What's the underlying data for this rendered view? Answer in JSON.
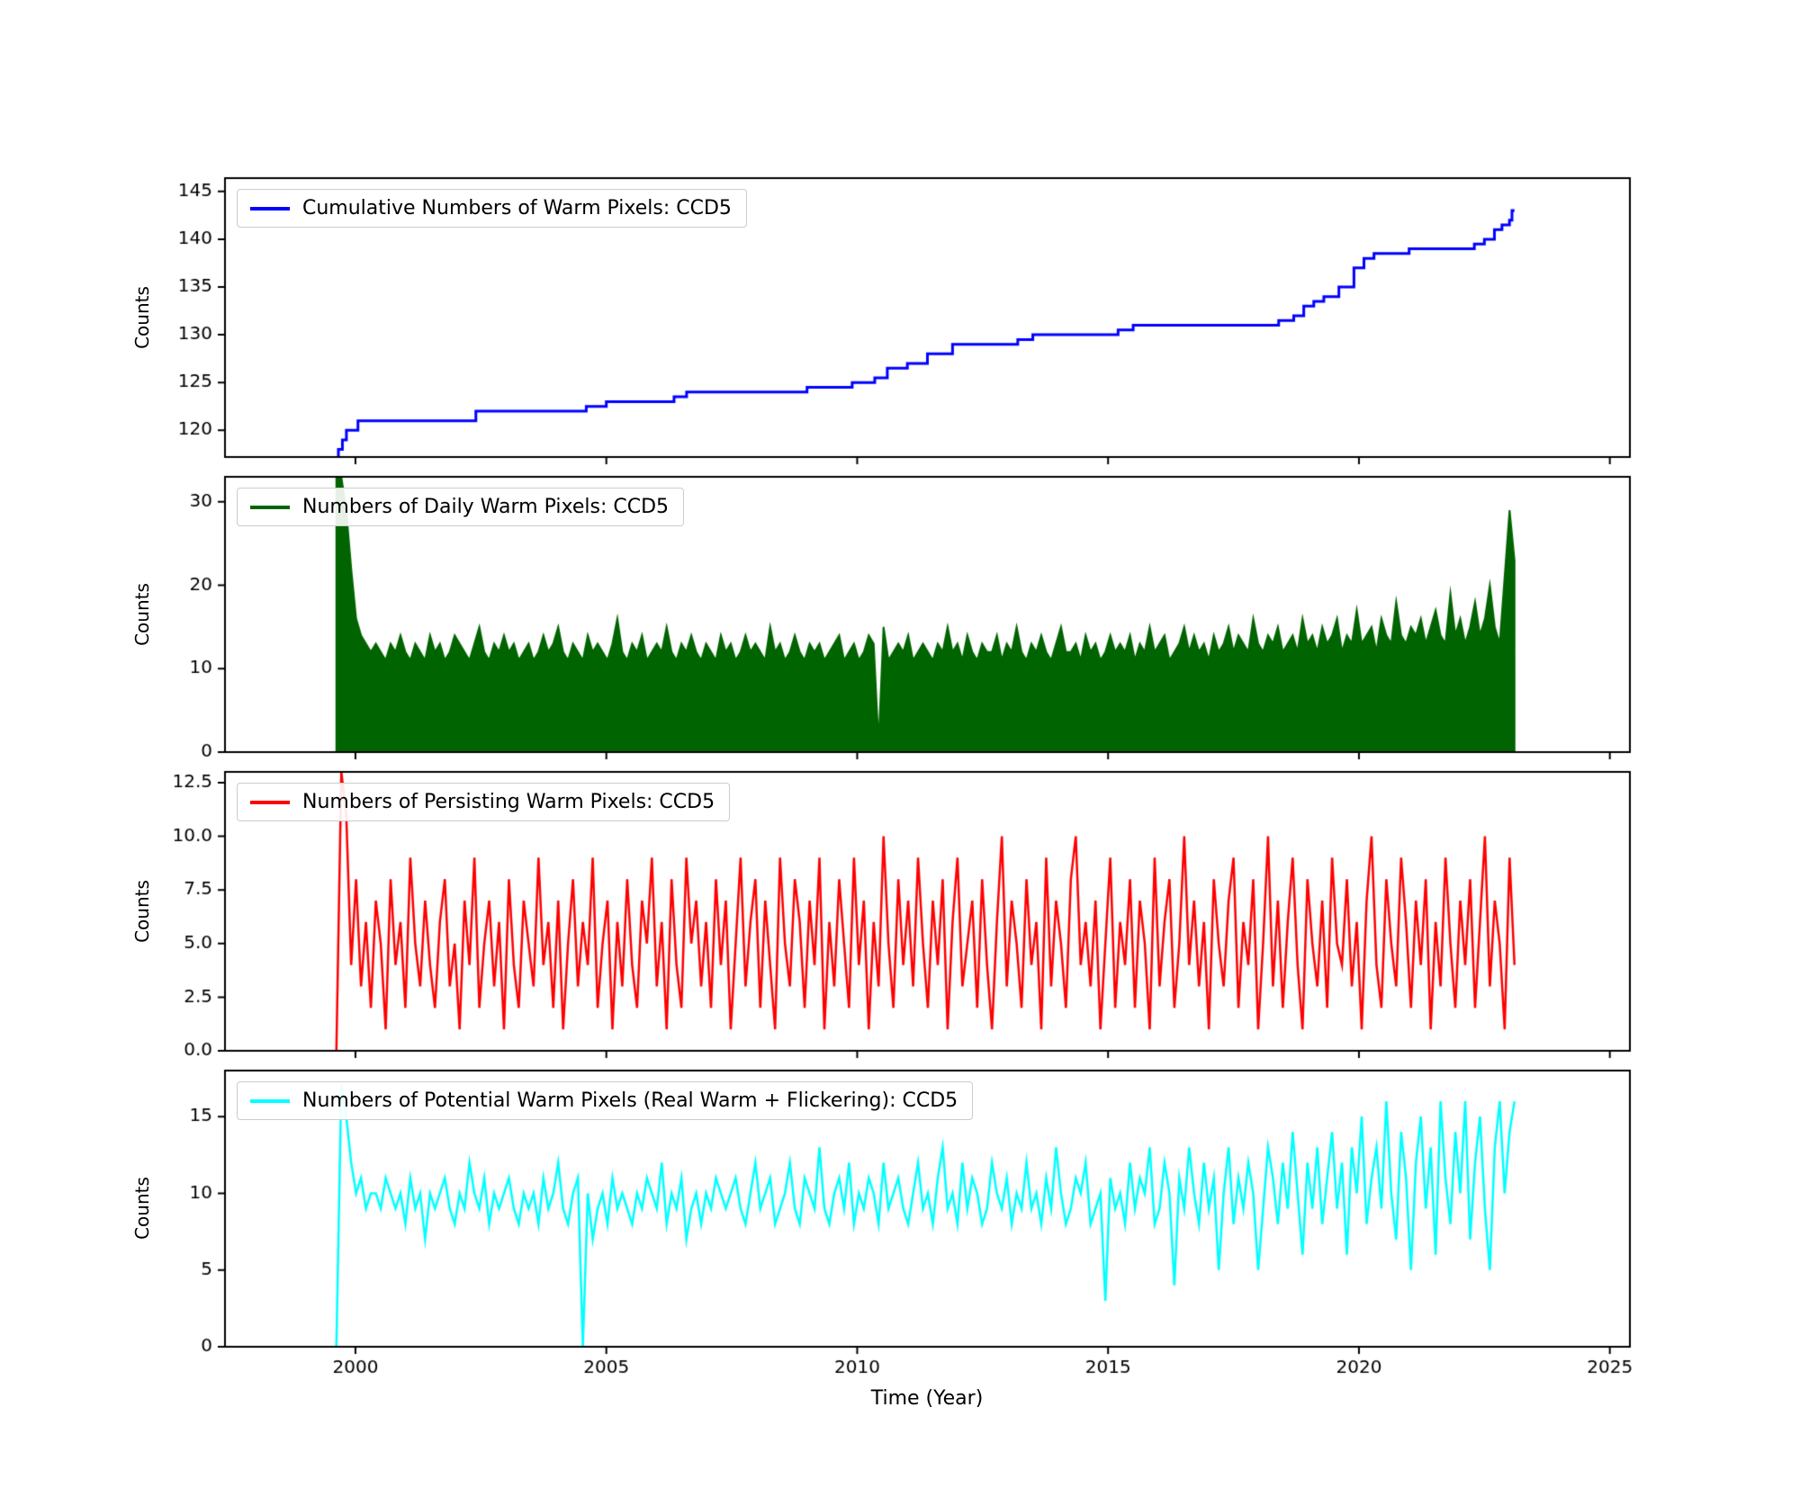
{
  "figure": {
    "background": "#ffffff",
    "xlabel": "Time (Year)",
    "ylabel": "Counts",
    "xlim": [
      1997.4,
      2025.4
    ],
    "x_ticks": [
      2000,
      2005,
      2010,
      2015,
      2020,
      2025
    ],
    "x_tick_labels": [
      "2000",
      "2005",
      "2010",
      "2015",
      "2020",
      "2025"
    ]
  },
  "chart_data": [
    {
      "type": "step",
      "legend": "Cumulative Numbers of Warm Pixels: CCD5",
      "color": "#0000ff",
      "ylabel": "Counts",
      "ylim": [
        117.2,
        146.4
      ],
      "yticks": [
        120,
        125,
        130,
        135,
        140,
        145
      ],
      "ytick_labels": [
        "120",
        "125",
        "130",
        "135",
        "140",
        "145"
      ],
      "x_end": 2023.1,
      "points": [
        [
          1999.6,
          117
        ],
        [
          1999.66,
          118
        ],
        [
          1999.74,
          119
        ],
        [
          1999.82,
          120
        ],
        [
          2000.05,
          121
        ],
        [
          2002.4,
          122
        ],
        [
          2004.6,
          122.5
        ],
        [
          2005.0,
          123
        ],
        [
          2006.35,
          123.5
        ],
        [
          2006.6,
          124
        ],
        [
          2009.0,
          124.5
        ],
        [
          2009.9,
          125
        ],
        [
          2010.35,
          125.5
        ],
        [
          2010.6,
          126.5
        ],
        [
          2011.0,
          127
        ],
        [
          2011.4,
          128
        ],
        [
          2011.9,
          129
        ],
        [
          2013.2,
          129.5
        ],
        [
          2013.5,
          130
        ],
        [
          2015.2,
          130.5
        ],
        [
          2015.5,
          131
        ],
        [
          2018.4,
          131.5
        ],
        [
          2018.7,
          132
        ],
        [
          2018.9,
          133
        ],
        [
          2019.1,
          133.5
        ],
        [
          2019.3,
          134
        ],
        [
          2019.6,
          135
        ],
        [
          2019.9,
          137
        ],
        [
          2020.1,
          138
        ],
        [
          2020.3,
          138.5
        ],
        [
          2021.0,
          139
        ],
        [
          2022.3,
          139.5
        ],
        [
          2022.5,
          140
        ],
        [
          2022.7,
          141
        ],
        [
          2022.85,
          141.5
        ],
        [
          2023.0,
          142
        ],
        [
          2023.05,
          143
        ]
      ]
    },
    {
      "type": "area",
      "legend": "Numbers of Daily Warm Pixels: CCD5",
      "color": "#006400",
      "ylabel": "Counts",
      "ylim": [
        0,
        33
      ],
      "yticks": [
        0,
        10,
        20,
        30
      ],
      "ytick_labels": [
        "0",
        "10",
        "20",
        "30"
      ],
      "x_start": 1999.62,
      "x_end": 2023.1,
      "values": [
        34,
        33,
        29,
        22,
        16,
        14,
        13,
        12,
        13,
        12,
        11,
        13,
        12,
        14,
        12,
        11,
        13,
        12,
        11,
        14,
        12,
        13,
        11,
        12,
        14,
        13,
        12,
        11,
        13,
        15,
        12,
        11,
        13,
        12,
        14,
        12,
        13,
        11,
        12,
        13,
        11,
        12,
        14,
        12,
        13,
        15,
        12,
        11,
        13,
        12,
        11,
        14,
        12,
        13,
        12,
        11,
        13,
        16,
        12,
        11,
        13,
        12,
        14,
        11,
        12,
        13,
        12,
        15,
        12,
        11,
        13,
        12,
        14,
        12,
        11,
        13,
        12,
        11,
        14,
        12,
        13,
        11,
        12,
        14,
        12,
        13,
        12,
        11,
        15,
        12,
        13,
        11,
        12,
        14,
        12,
        11,
        13,
        12,
        13,
        11,
        12,
        13,
        14,
        11,
        12,
        13,
        11,
        12,
        14,
        13,
        1,
        15,
        11,
        12,
        13,
        12,
        14,
        11,
        12,
        13,
        12,
        11,
        13,
        12,
        15,
        12,
        13,
        11,
        14,
        12,
        11,
        13,
        12,
        12,
        14,
        11,
        13,
        12,
        15,
        12,
        11,
        13,
        12,
        14,
        12,
        11,
        13,
        15,
        12,
        12,
        13,
        11,
        14,
        12,
        13,
        11,
        12,
        14,
        12,
        13,
        12,
        14,
        11,
        13,
        12,
        15,
        12,
        13,
        14,
        11,
        12,
        13,
        15,
        12,
        14,
        12,
        13,
        11,
        14,
        12,
        13,
        15,
        12,
        14,
        13,
        12,
        16,
        13,
        12,
        14,
        13,
        15,
        12,
        13,
        14,
        12,
        16,
        13,
        14,
        12,
        15,
        13,
        14,
        16,
        12,
        14,
        13,
        17,
        13,
        14,
        15,
        12,
        16,
        14,
        13,
        18,
        14,
        13,
        15,
        14,
        16,
        13,
        15,
        17,
        14,
        13,
        19,
        14,
        16,
        13,
        15,
        18,
        14,
        16,
        20,
        15,
        13,
        21,
        29,
        23
      ]
    },
    {
      "type": "line",
      "legend": "Numbers of Persisting Warm Pixels: CCD5",
      "color": "#ff0000",
      "ylabel": "Counts",
      "ylim": [
        0,
        13
      ],
      "yticks": [
        0,
        2.5,
        5,
        7.5,
        10,
        12.5
      ],
      "ytick_labels": [
        "0.0",
        "2.5",
        "5.0",
        "7.5",
        "10.0",
        "12.5"
      ],
      "x_start": 1999.62,
      "x_end": 2023.1,
      "values": [
        0,
        13,
        11,
        4,
        8,
        3,
        6,
        2,
        7,
        5,
        1,
        8,
        4,
        6,
        2,
        9,
        5,
        3,
        7,
        4,
        2,
        6,
        8,
        3,
        5,
        1,
        7,
        4,
        9,
        2,
        5,
        7,
        3,
        6,
        1,
        8,
        4,
        2,
        7,
        5,
        3,
        9,
        4,
        6,
        2,
        7,
        1,
        5,
        8,
        3,
        6,
        4,
        9,
        2,
        5,
        7,
        1,
        6,
        3,
        8,
        4,
        2,
        7,
        5,
        9,
        3,
        6,
        1,
        8,
        4,
        2,
        9,
        5,
        7,
        3,
        6,
        2,
        8,
        4,
        7,
        1,
        5,
        9,
        3,
        6,
        8,
        2,
        7,
        4,
        1,
        9,
        5,
        3,
        8,
        6,
        2,
        7,
        4,
        9,
        1,
        6,
        3,
        8,
        5,
        2,
        9,
        4,
        7,
        1,
        6,
        3,
        10,
        5,
        2,
        8,
        4,
        7,
        3,
        9,
        5,
        2,
        7,
        4,
        8,
        1,
        6,
        9,
        3,
        5,
        7,
        2,
        8,
        4,
        1,
        6,
        10,
        3,
        7,
        5,
        2,
        8,
        4,
        6,
        1,
        9,
        3,
        7,
        5,
        2,
        8,
        10,
        4,
        6,
        3,
        7,
        1,
        5,
        9,
        2,
        6,
        4,
        8,
        2,
        7,
        5,
        1,
        9,
        3,
        6,
        8,
        2,
        5,
        10,
        4,
        7,
        3,
        6,
        1,
        8,
        5,
        3,
        7,
        9,
        2,
        6,
        4,
        8,
        1,
        5,
        10,
        3,
        7,
        2,
        6,
        9,
        4,
        1,
        8,
        5,
        3,
        7,
        2,
        9,
        5,
        4,
        8,
        3,
        6,
        1,
        7,
        10,
        4,
        2,
        8,
        5,
        3,
        9,
        6,
        2,
        7,
        4,
        8,
        1,
        6,
        3,
        9,
        5,
        2,
        7,
        4,
        8,
        2,
        6,
        10,
        3,
        7,
        5,
        1,
        9,
        4
      ]
    },
    {
      "type": "line",
      "legend": "Numbers of Potential Warm Pixels (Real Warm + Flickering): CCD5",
      "color": "#00ffff",
      "ylabel": "Counts",
      "ylim": [
        0,
        18
      ],
      "yticks": [
        0,
        5,
        10,
        15
      ],
      "ytick_labels": [
        "0",
        "5",
        "10",
        "15"
      ],
      "x_start": 1999.62,
      "x_end": 2023.1,
      "values": [
        0,
        17,
        15,
        12,
        10,
        11,
        9,
        10,
        10,
        9,
        11,
        10,
        9,
        10,
        8,
        11,
        9,
        10,
        7,
        10,
        9,
        10,
        11,
        9,
        8,
        10,
        9,
        12,
        10,
        9,
        11,
        8,
        10,
        9,
        10,
        11,
        9,
        8,
        10,
        9,
        10,
        8,
        11,
        9,
        10,
        12,
        9,
        8,
        10,
        11,
        0,
        10,
        7,
        9,
        10,
        8,
        11,
        9,
        10,
        9,
        8,
        10,
        9,
        11,
        10,
        9,
        12,
        8,
        10,
        9,
        11,
        7,
        9,
        10,
        8,
        10,
        9,
        11,
        10,
        9,
        10,
        11,
        9,
        8,
        10,
        12,
        9,
        10,
        11,
        8,
        9,
        10,
        12,
        9,
        8,
        11,
        10,
        9,
        13,
        9,
        8,
        10,
        11,
        9,
        12,
        8,
        10,
        9,
        11,
        10,
        8,
        12,
        9,
        10,
        11,
        9,
        8,
        10,
        12,
        9,
        10,
        8,
        11,
        13,
        9,
        10,
        8,
        12,
        9,
        11,
        10,
        8,
        9,
        12,
        10,
        9,
        11,
        8,
        10,
        9,
        12,
        9,
        10,
        8,
        11,
        9,
        13,
        10,
        8,
        9,
        11,
        10,
        12,
        8,
        9,
        10,
        3,
        11,
        9,
        10,
        8,
        12,
        9,
        11,
        10,
        13,
        8,
        9,
        12,
        10,
        4,
        11,
        9,
        13,
        10,
        8,
        12,
        9,
        11,
        5,
        10,
        13,
        8,
        11,
        9,
        12,
        10,
        5,
        9,
        13,
        11,
        8,
        12,
        9,
        14,
        10,
        6,
        12,
        9,
        13,
        8,
        11,
        14,
        9,
        12,
        6,
        13,
        10,
        15,
        8,
        11,
        13,
        9,
        16,
        10,
        7,
        14,
        11,
        5,
        12,
        15,
        9,
        13,
        6,
        16,
        11,
        8,
        14,
        10,
        16,
        7,
        12,
        15,
        9,
        5,
        13,
        16,
        10,
        14,
        16
      ]
    }
  ]
}
